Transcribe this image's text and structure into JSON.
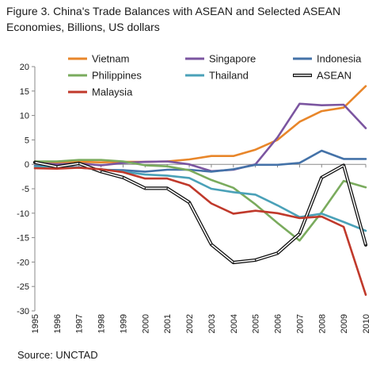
{
  "figure": {
    "title_line1": "Figure 3. China's Trade Balances with ASEAN and Selected ASEAN",
    "title_line2": "Economies, Billions, US dollars",
    "source": "Source: UNCTAD"
  },
  "chart_data": {
    "type": "line",
    "title": "Figure 3. China's Trade Balances with ASEAN and Selected ASEAN Economies, Billions, US dollars",
    "xlabel": "",
    "ylabel": "",
    "x": [
      "1995",
      "1996",
      "1997",
      "1998",
      "1999",
      "2000",
      "2001",
      "2002",
      "2003",
      "2004",
      "2005",
      "2006",
      "2007",
      "2008",
      "2009",
      "2010"
    ],
    "ylim": [
      -30,
      20
    ],
    "yticks": [
      20,
      15,
      10,
      5,
      0,
      -5,
      -10,
      -15,
      -20,
      -25,
      -30
    ],
    "grid": false,
    "legend_position": "top",
    "series": [
      {
        "name": "Vietnam",
        "color": "#e8862a",
        "values": [
          0.3,
          0.4,
          0.5,
          0.4,
          0.5,
          0.5,
          0.6,
          1.0,
          1.7,
          1.7,
          3.0,
          5.0,
          8.7,
          10.9,
          11.6,
          16.0
        ]
      },
      {
        "name": "Singapore",
        "color": "#7b55a0",
        "values": [
          0.3,
          0.0,
          0.2,
          -0.2,
          0.3,
          0.5,
          0.6,
          0.0,
          -1.4,
          -1.1,
          0.0,
          5.5,
          12.4,
          12.1,
          12.2,
          7.4
        ]
      },
      {
        "name": "Indonesia",
        "color": "#4472a8",
        "values": [
          -0.3,
          -0.5,
          -0.6,
          -1.1,
          -1.2,
          -1.5,
          -1.1,
          -1.1,
          -1.5,
          -1.0,
          -0.1,
          -0.1,
          0.3,
          2.8,
          1.1,
          1.1
        ]
      },
      {
        "name": "Philippines",
        "color": "#7aab5d",
        "values": [
          0.6,
          0.6,
          0.9,
          0.9,
          0.6,
          -0.2,
          -0.4,
          -1.2,
          -3.2,
          -4.8,
          -8.2,
          -12.0,
          -15.6,
          -9.8,
          -3.4,
          -4.7
        ]
      },
      {
        "name": "Thailand",
        "color": "#4aa1b8",
        "values": [
          -0.5,
          -0.5,
          -0.7,
          -1.0,
          -1.5,
          -2.1,
          -2.3,
          -2.8,
          -5.0,
          -5.7,
          -6.2,
          -8.4,
          -10.8,
          -10.1,
          -11.8,
          -13.6
        ]
      },
      {
        "name": "ASEAN",
        "color": "#111111",
        "double": true,
        "values": [
          0.4,
          -0.5,
          0.2,
          -1.5,
          -2.7,
          -4.9,
          -4.9,
          -7.8,
          -16.4,
          -20.1,
          -19.6,
          -18.2,
          -14.2,
          -2.7,
          -0.2,
          -16.5
        ]
      },
      {
        "name": "Malaysia",
        "color": "#c0392b",
        "values": [
          -0.8,
          -0.9,
          -0.7,
          -1.0,
          -1.6,
          -2.9,
          -2.9,
          -4.3,
          -8.0,
          -10.1,
          -9.5,
          -10.0,
          -11.0,
          -10.7,
          -12.8,
          -26.7
        ]
      }
    ]
  }
}
